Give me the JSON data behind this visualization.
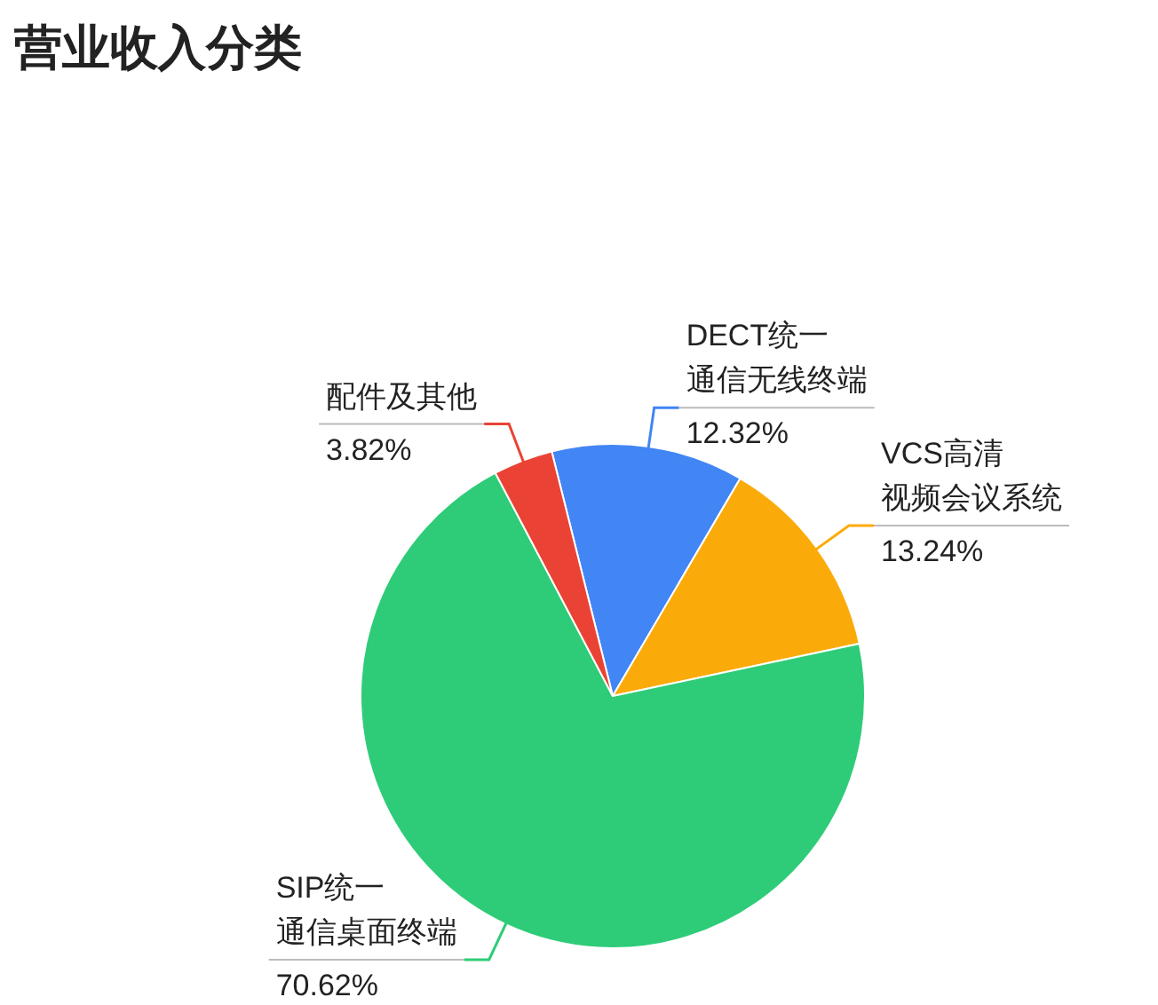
{
  "chart_data": {
    "type": "pie",
    "title": "营业收入分类",
    "categories": [
      "DECT统一通信无线终端",
      "VCS高清视频会议系统",
      "SIP统一通信桌面终端",
      "配件及其他"
    ],
    "values": [
      12.32,
      13.24,
      70.62,
      3.82
    ],
    "value_labels": [
      "12.32%",
      "13.24%",
      "70.62%",
      "3.82%"
    ],
    "colors": [
      "#4285f4",
      "#fbab09",
      "#2ecc78",
      "#ea4335"
    ]
  }
}
